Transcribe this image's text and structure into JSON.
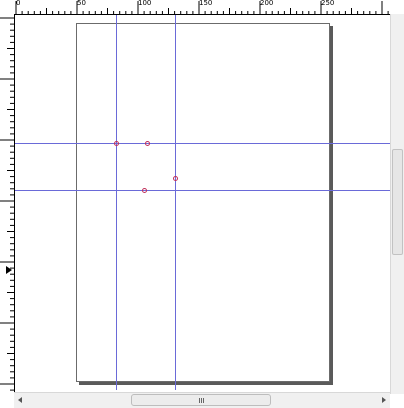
{
  "ruler": {
    "horizontal_labels": [
      "0",
      "50",
      "100",
      "150",
      "200",
      "250"
    ]
  },
  "icons": {
    "scroll_grip": "grip-icon",
    "scroll_left": "arrow-left-icon",
    "scroll_right": "arrow-right-icon",
    "ruler_marker": "triangle-marker-icon"
  },
  "colors": {
    "guide": "#6a6ad8",
    "handle": "#c0305a",
    "page_border": "#6b6b6b"
  }
}
